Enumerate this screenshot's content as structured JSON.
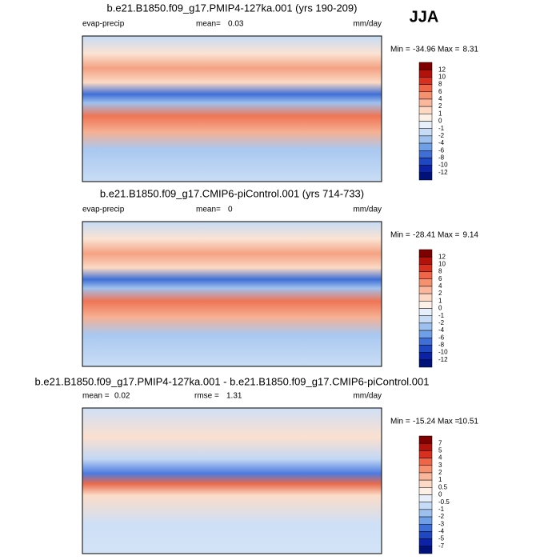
{
  "header": {
    "season": "JJA"
  },
  "panels": [
    {
      "title": "b.e21.B1850.f09_g17.PMIP4-127ka.001 (yrs 190-209)",
      "variable": "evap-precip",
      "stats": [
        {
          "label": "mean=",
          "value": 0.03
        }
      ],
      "units": "mm/day",
      "min_label": "Min =",
      "min": -34.96,
      "max_label": "Max =",
      "max": 8.31,
      "colorbar_levels": [
        12,
        10,
        8,
        6,
        4,
        2,
        1,
        0,
        -1,
        -2,
        -4,
        -6,
        -8,
        -10,
        -12
      ]
    },
    {
      "title": "b.e21.B1850.f09_g17.CMIP6-piControl.001 (yrs 714-733)",
      "variable": "evap-precip",
      "stats": [
        {
          "label": "mean=",
          "value": 0.0
        }
      ],
      "units": "mm/day",
      "min_label": "Min =",
      "min": -28.41,
      "max_label": "Max =",
      "max": 9.14,
      "colorbar_levels": [
        12,
        10,
        8,
        6,
        4,
        2,
        1,
        0,
        -1,
        -2,
        -4,
        -6,
        -8,
        -10,
        -12
      ]
    },
    {
      "title": "b.e21.B1850.f09_g17.PMIP4-127ka.001 - b.e21.B1850.f09_g17.CMIP6-piControl.001",
      "stats": [
        {
          "label": "mean =",
          "value": 0.02
        },
        {
          "label": "rmse =",
          "value": 1.31
        }
      ],
      "units": "mm/day",
      "min_label": "Min =",
      "min": -15.24,
      "max_label": "Max =",
      "max": 10.51,
      "colorbar_levels": [
        7,
        5,
        4,
        3,
        2,
        1,
        0.5,
        0,
        -0.5,
        -1,
        -2,
        -3,
        -4,
        -5,
        -7
      ]
    }
  ]
}
